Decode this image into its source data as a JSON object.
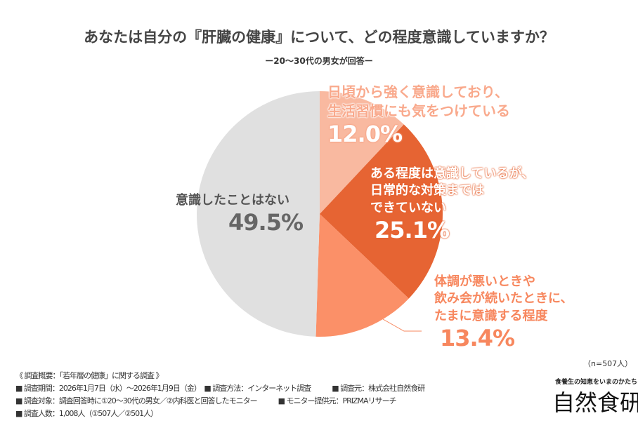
{
  "chart_data": {
    "type": "pie",
    "title": "あなたは自分の『肝臓の健康』について、どの程度意識していますか？",
    "subtitle": "ー20〜30代の男女が回答ー",
    "n_label": "（n=507人）",
    "slices": [
      {
        "label": [
          "日頃から強く意識しており、",
          "生活習慣にも気をつけている"
        ],
        "value": 12.0,
        "display": "12.0%",
        "color": "#f9b9a0"
      },
      {
        "label": [
          "ある程度は意識しているが、",
          "日常的な対策までは",
          "できていない"
        ],
        "value": 25.1,
        "display": "25.1%",
        "color": "#e66433"
      },
      {
        "label": [
          "体調が悪いときや",
          "飲み会が続いたときに、",
          "たまに意識する程度"
        ],
        "value": 13.4,
        "display": "13.4%",
        "color": "#fb9068"
      },
      {
        "label": [
          "意識したことはない"
        ],
        "value": 49.5,
        "display": "49.5%",
        "color": "#e0e0e0"
      }
    ]
  },
  "footer": {
    "lines": [
      "《 調査概要：「若年層の健康」に関する調査 》",
      "■ 調査期間：2026年1月7日（水）〜2026年1月9日（金）　■ 調査方法：インターネット調査　　　■ 調査元：株式会社自然食研",
      "■ 調査対象：調査回答時に①20〜30代の男女／②内科医と回答したモニター　　　■ モニター提供元：PRIZMAリサーチ",
      "■ 調査人数：1,008人（①507人／②501人）"
    ]
  },
  "logo": {
    "tagline": "食養生の知恵をいまのかたちに",
    "name": "自然食研"
  }
}
